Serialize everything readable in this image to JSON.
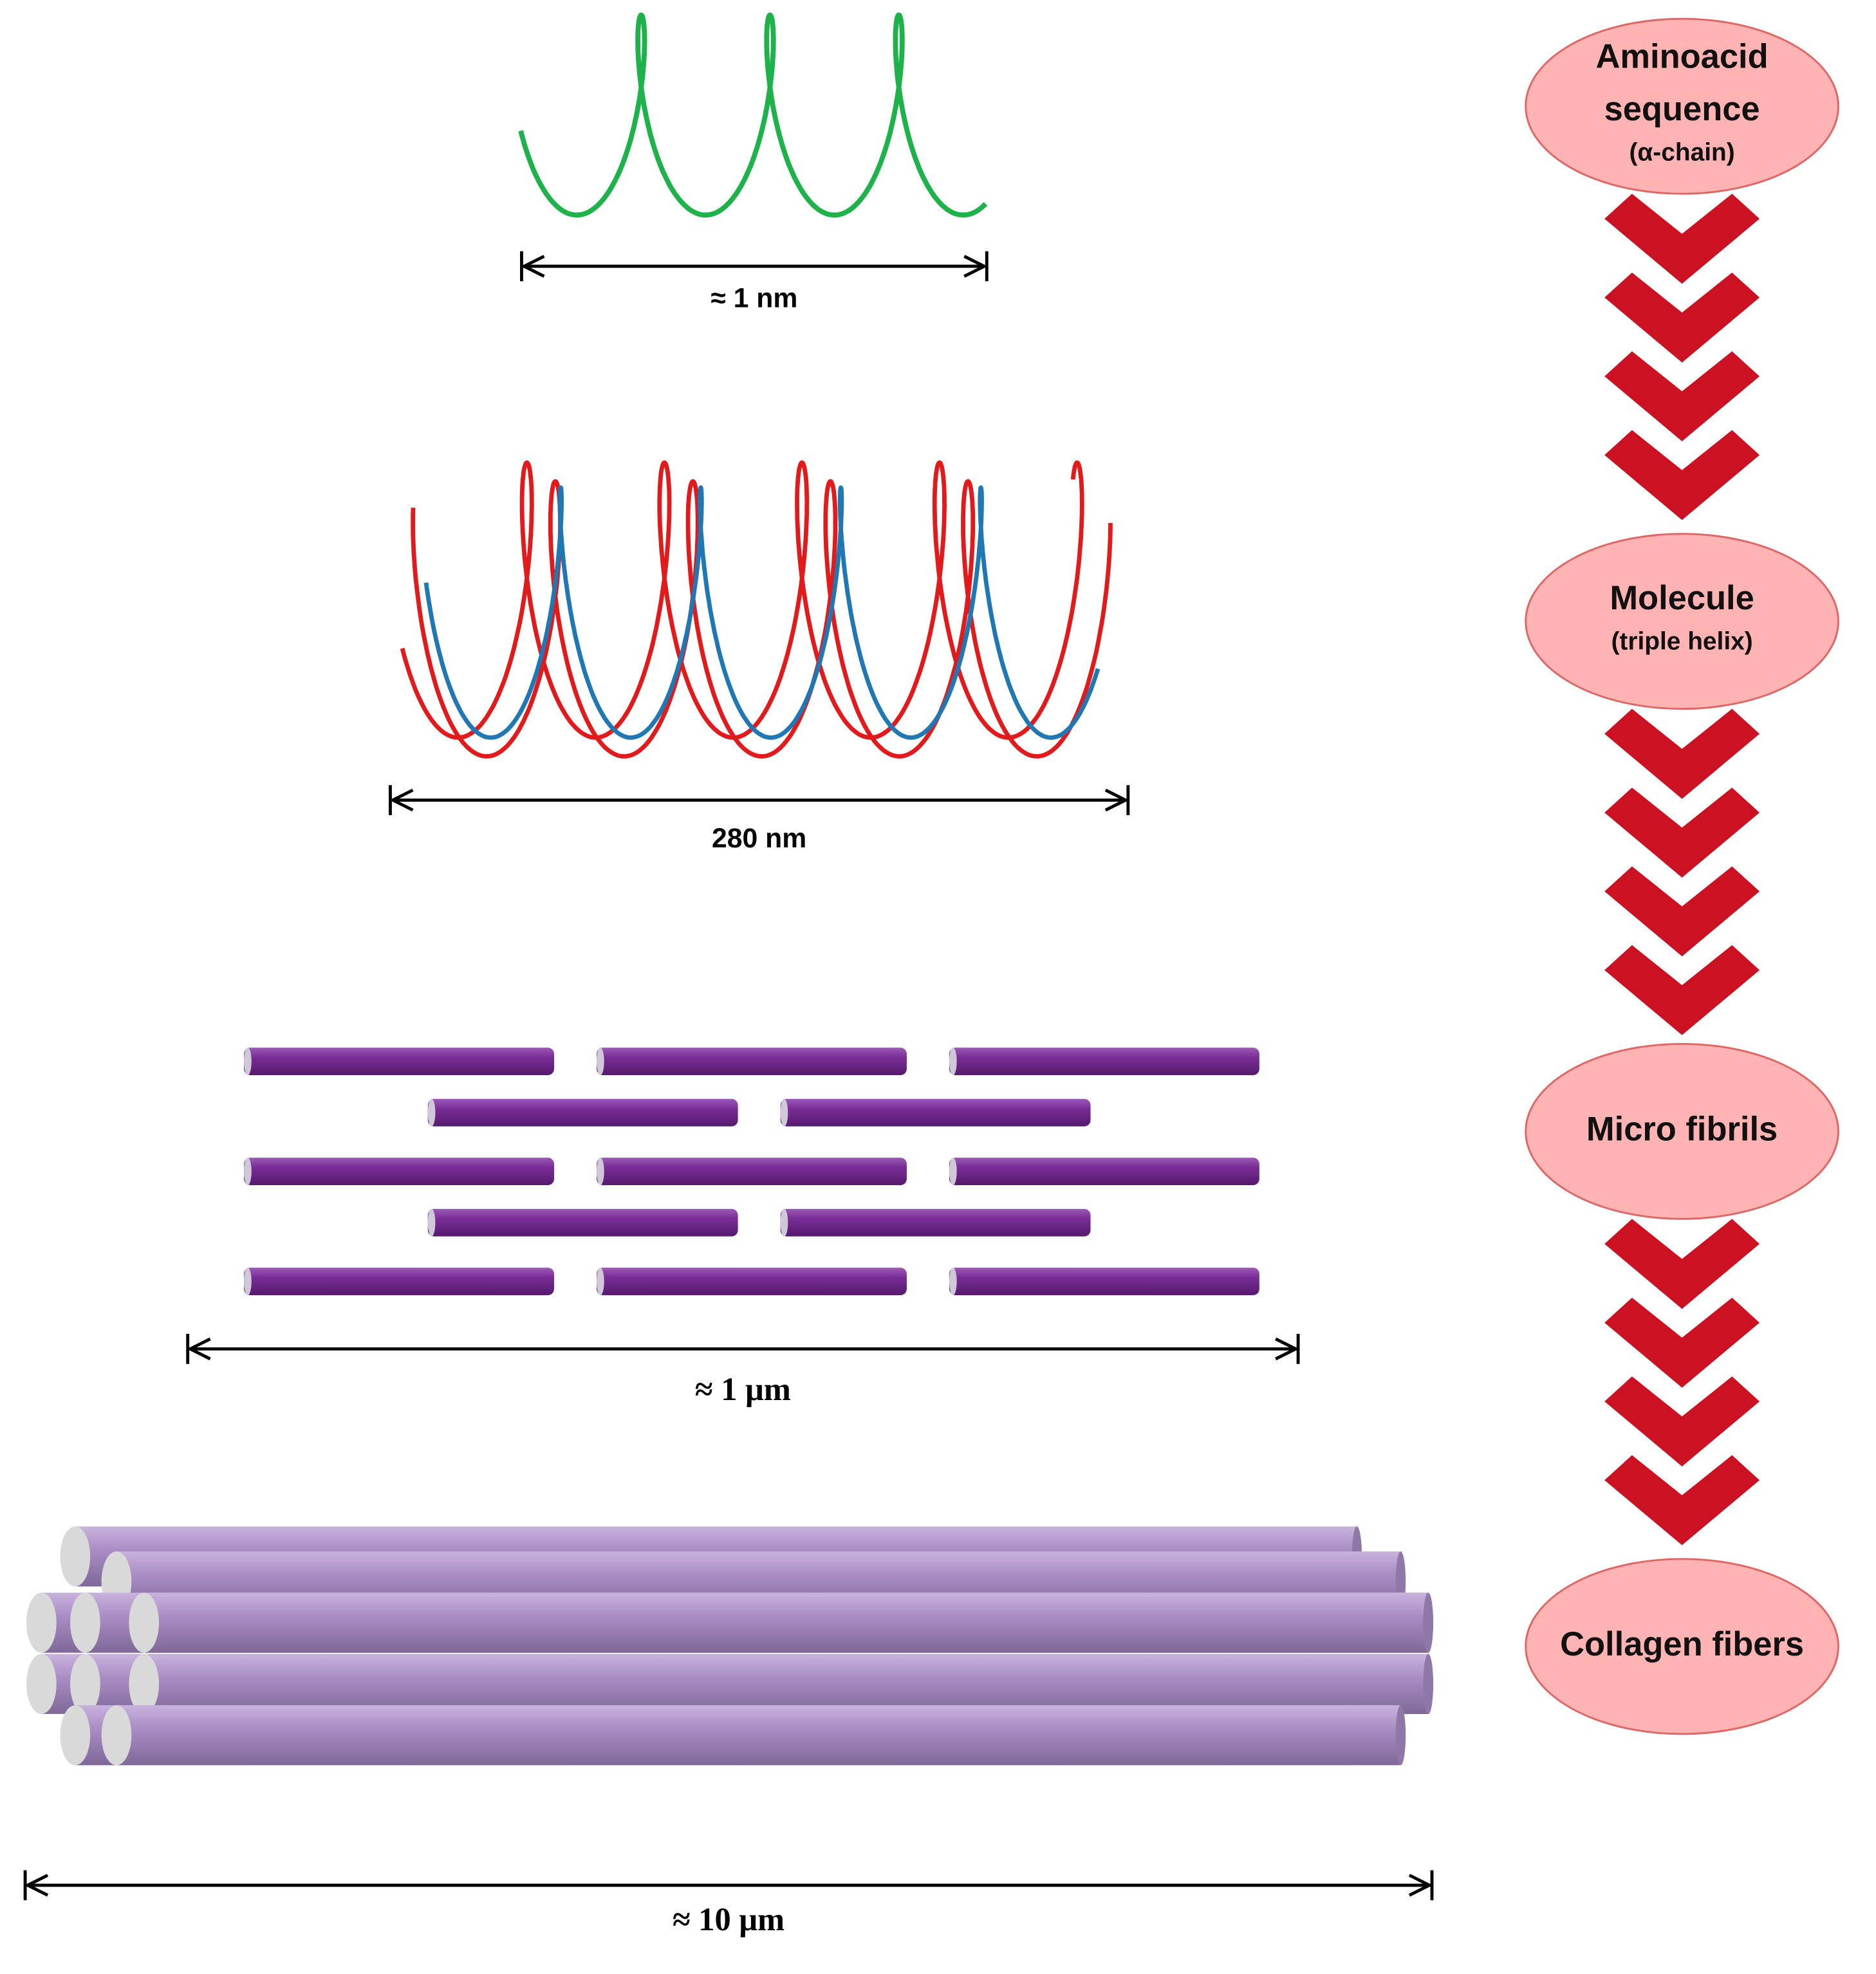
{
  "stages": [
    {
      "label_lines": [
        "Aminoacid",
        "sequence"
      ],
      "sublabel": "(α-chain)",
      "scale": "≈ 1 nm"
    },
    {
      "label_lines": [
        "Molecule"
      ],
      "sublabel": "(triple helix)",
      "scale": "280 nm"
    },
    {
      "label_lines": [
        "Micro fibrils"
      ],
      "scale": "≈ 1 μm"
    },
    {
      "label_lines": [
        "Collagen fibers"
      ],
      "scale": "≈ 10 μm"
    }
  ]
}
